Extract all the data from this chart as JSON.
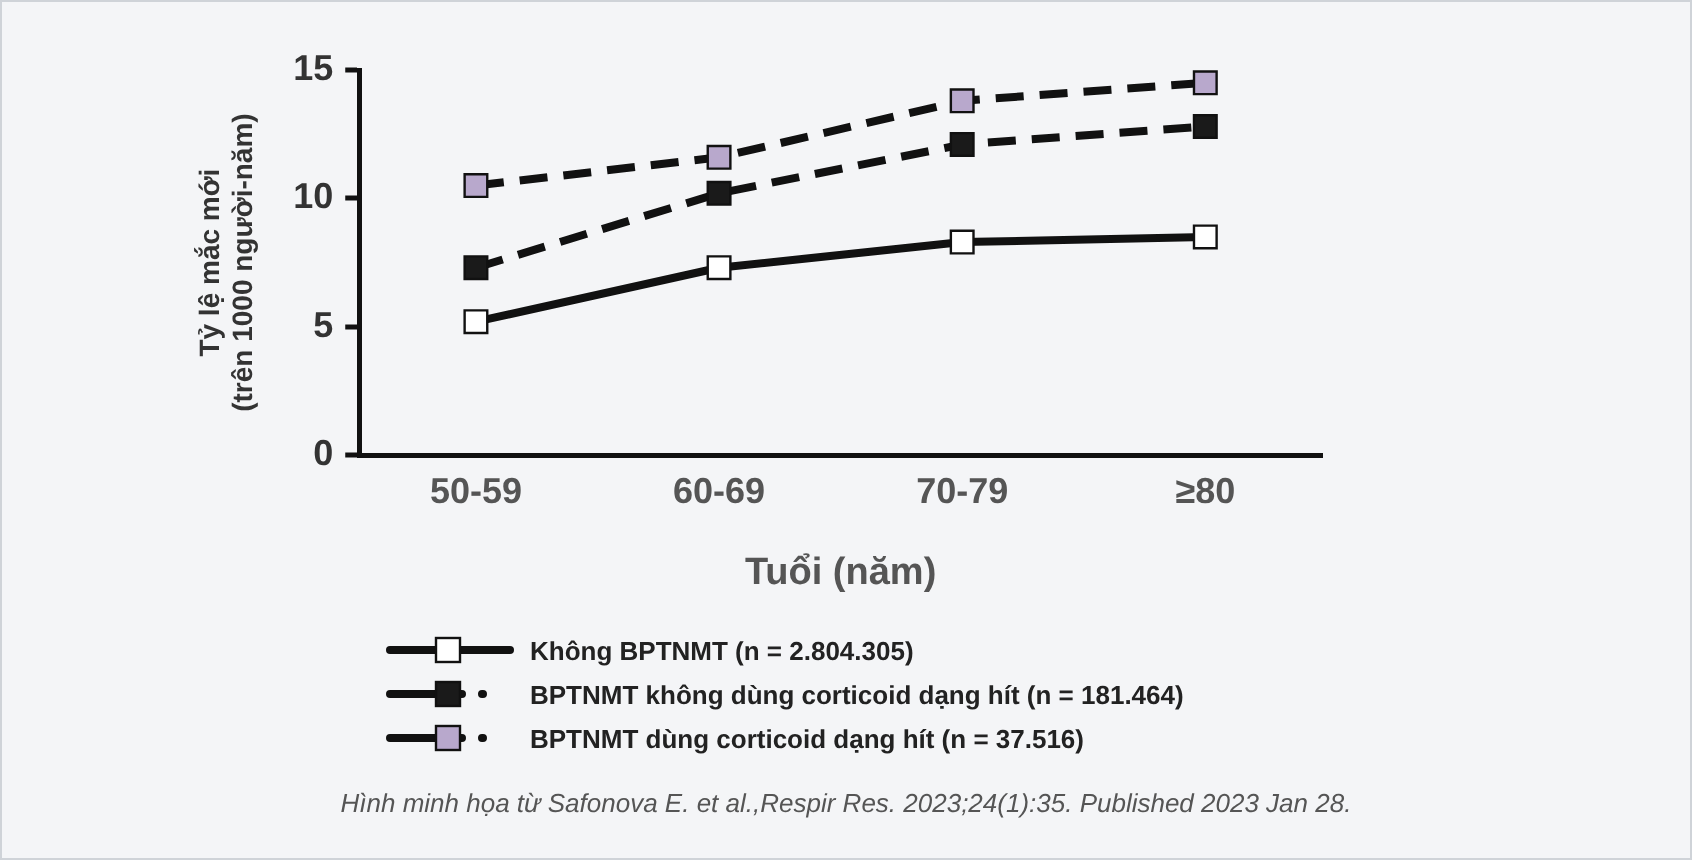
{
  "chart_data": {
    "type": "line",
    "xlabel": "Tuổi (năm)",
    "ylabel": "Tỷ lệ mắc mới\n(trên 1000 người-năm)",
    "categories": [
      "50-59",
      "60-69",
      "70-79",
      "≥80"
    ],
    "series": [
      {
        "name": "Không BPTNMT (n = 2.804.305)",
        "color": "#ffffff",
        "line_style": "solid",
        "values": [
          5.2,
          7.3,
          8.3,
          8.5
        ]
      },
      {
        "name": "BPTNMT không dùng corticoid dạng hít (n = 181.464)",
        "color": "#1a1a1a",
        "line_style": "dashed",
        "values": [
          7.3,
          10.2,
          12.1,
          12.8
        ]
      },
      {
        "name": "BPTNMT dùng corticoid dạng hít (n = 37.516)",
        "color": "#b8a8cc",
        "line_style": "dashed",
        "values": [
          10.5,
          11.6,
          13.8,
          14.5
        ]
      }
    ],
    "ylim": [
      0,
      15
    ],
    "yticks": [
      0,
      5,
      10,
      15
    ],
    "grid": false,
    "legend": "bottom",
    "marker": "square",
    "annotations": [
      "Hình minh họa từ Safonova E. et al.,Respir Res. 2023;24(1):35. Published 2023 Jan 28."
    ]
  }
}
